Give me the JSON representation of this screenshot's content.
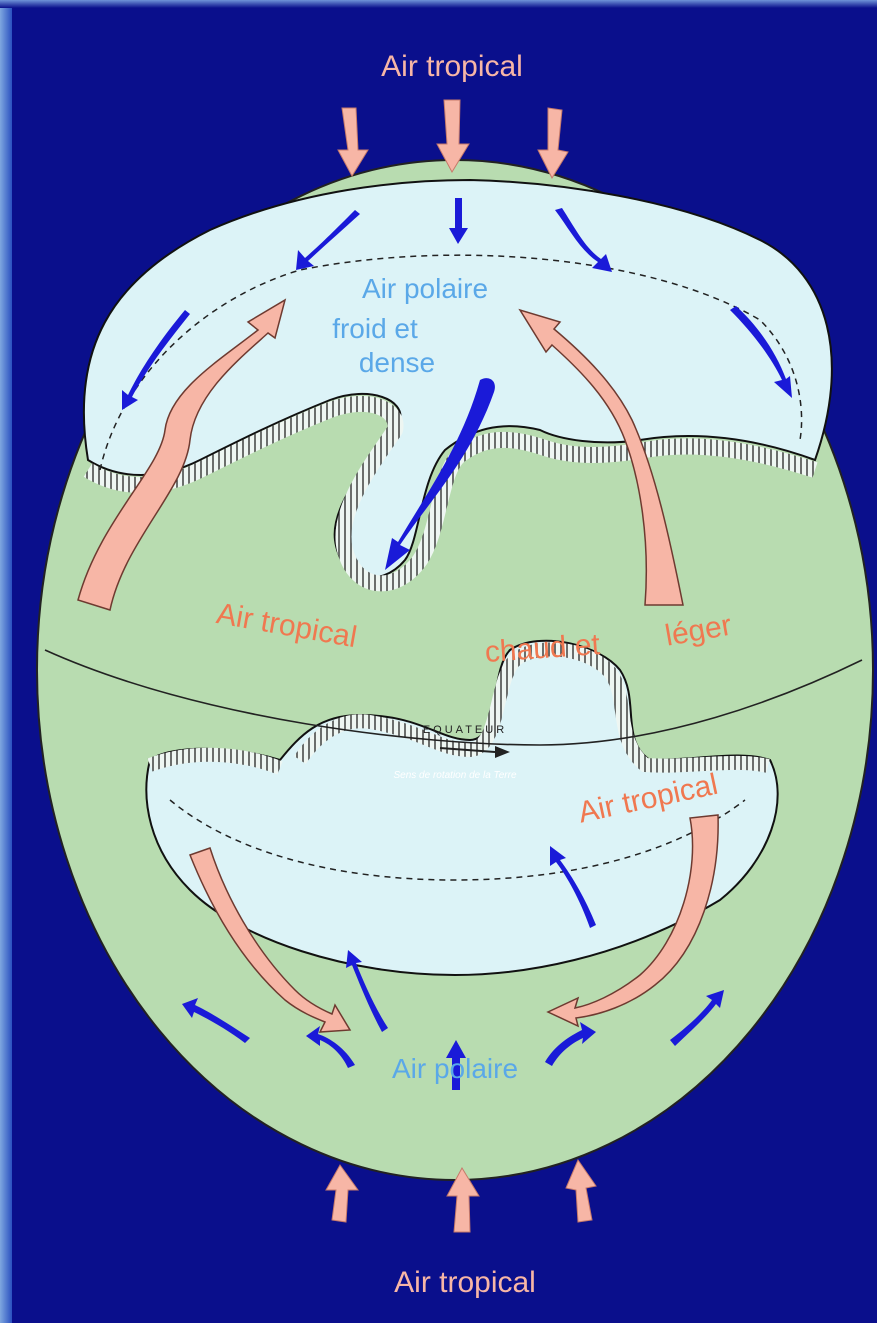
{
  "labels": {
    "top_tropical": "Air tropical",
    "north_polar": "Air polaire",
    "north_polar_desc_1": "froid et",
    "north_polar_desc_2": "dense",
    "mid_tropical": "Air tropical",
    "mid_chaud": "chaud et",
    "mid_leger": "léger",
    "equator": "EQUATEUR",
    "rotation": "Sens de rotation de la Terre",
    "south_tropical": "Air tropical",
    "south_polar": "Air polaire",
    "bottom_tropical": "Air tropical"
  },
  "colors": {
    "background": "#0a0f8c",
    "polar_cap": "#dcf3f7",
    "globe": "#b8dcb0",
    "tropical_arrow": "#f7b6a6",
    "polar_arrow": "#1a1ad8",
    "tropical_text": "#f07850",
    "polar_text": "#5aa8e8"
  },
  "icons": {
    "tropical_flow": "salmon-arrow",
    "polar_flow": "blue-arrow",
    "front": "hatched-front-line"
  }
}
